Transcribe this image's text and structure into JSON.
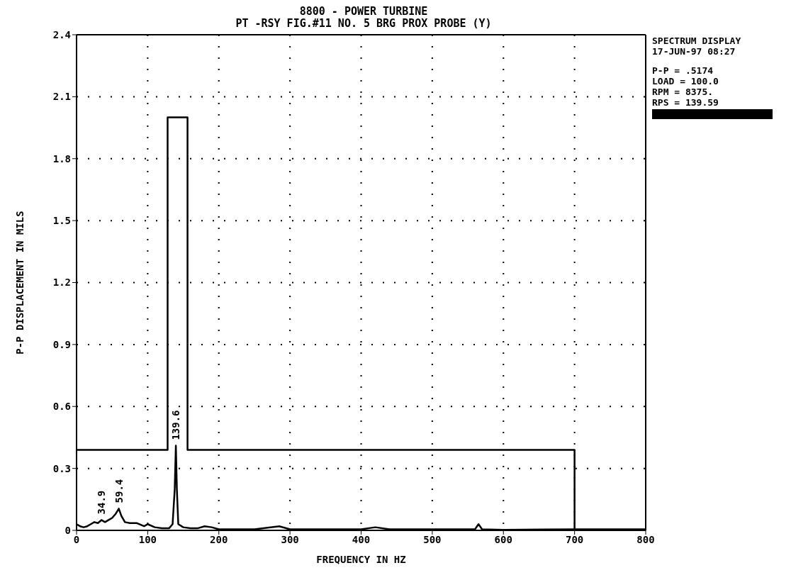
{
  "chart_data": {
    "type": "line",
    "title": "8800 - POWER TURBINE",
    "subtitle": "PT -RSY FIG.#11 NO. 5 BRG PROX PROBE (Y)",
    "xlabel": "FREQUENCY IN HZ",
    "ylabel": "P-P DISPLACEMENT IN MILS",
    "xlim": [
      0,
      800
    ],
    "xticks": [
      0,
      100,
      200,
      300,
      400,
      500,
      600,
      700,
      800
    ],
    "ylim": [
      0,
      2.4
    ],
    "yticks": [
      0,
      0.3,
      0.6,
      0.9,
      1.2,
      1.5,
      1.8,
      2.1,
      2.4
    ],
    "grid": true,
    "line_style": "solid",
    "marker": "none",
    "series": [
      {
        "color": "#000000",
        "x": [
          0,
          5,
          10,
          15,
          20,
          25,
          30,
          35,
          40,
          45,
          50,
          55,
          59.4,
          63,
          68,
          75,
          85,
          95,
          100,
          110,
          120,
          130,
          135,
          138,
          139.6,
          141,
          143,
          150,
          160,
          170,
          180,
          190,
          200,
          250,
          285,
          300,
          400,
          420,
          440,
          500,
          560,
          565,
          570,
          600,
          700,
          800
        ],
        "values": [
          0.03,
          0.02,
          0.015,
          0.02,
          0.03,
          0.04,
          0.035,
          0.05,
          0.04,
          0.05,
          0.06,
          0.08,
          0.105,
          0.07,
          0.04,
          0.035,
          0.035,
          0.02,
          0.03,
          0.015,
          0.01,
          0.01,
          0.03,
          0.2,
          0.41,
          0.2,
          0.03,
          0.015,
          0.01,
          0.01,
          0.02,
          0.015,
          0.005,
          0.005,
          0.02,
          0.005,
          0.005,
          0.015,
          0.005,
          0.005,
          0.005,
          0.03,
          0.005,
          0.003,
          0.005,
          0.005
        ]
      },
      {
        "color": "#000000",
        "x": [
          0,
          128,
          128,
          156,
          156,
          700,
          700
        ],
        "values": [
          0.39,
          0.39,
          2.0,
          2.0,
          0.39,
          0.39,
          0
        ]
      }
    ],
    "annotations": [
      "SPECTRUM DISPLAY",
      "17-JUN-97 08:27",
      "P-P = .5174",
      "LOAD = 100.0",
      "RPM = 8375.",
      "RPS = 139.59",
      {
        "text": "34.9",
        "x": 34.9,
        "y": 0.05
      },
      {
        "text": "59.4",
        "x": 59.4,
        "y": 0.105
      },
      {
        "text": "139.6",
        "x": 139.6,
        "y": 0.41
      }
    ]
  }
}
